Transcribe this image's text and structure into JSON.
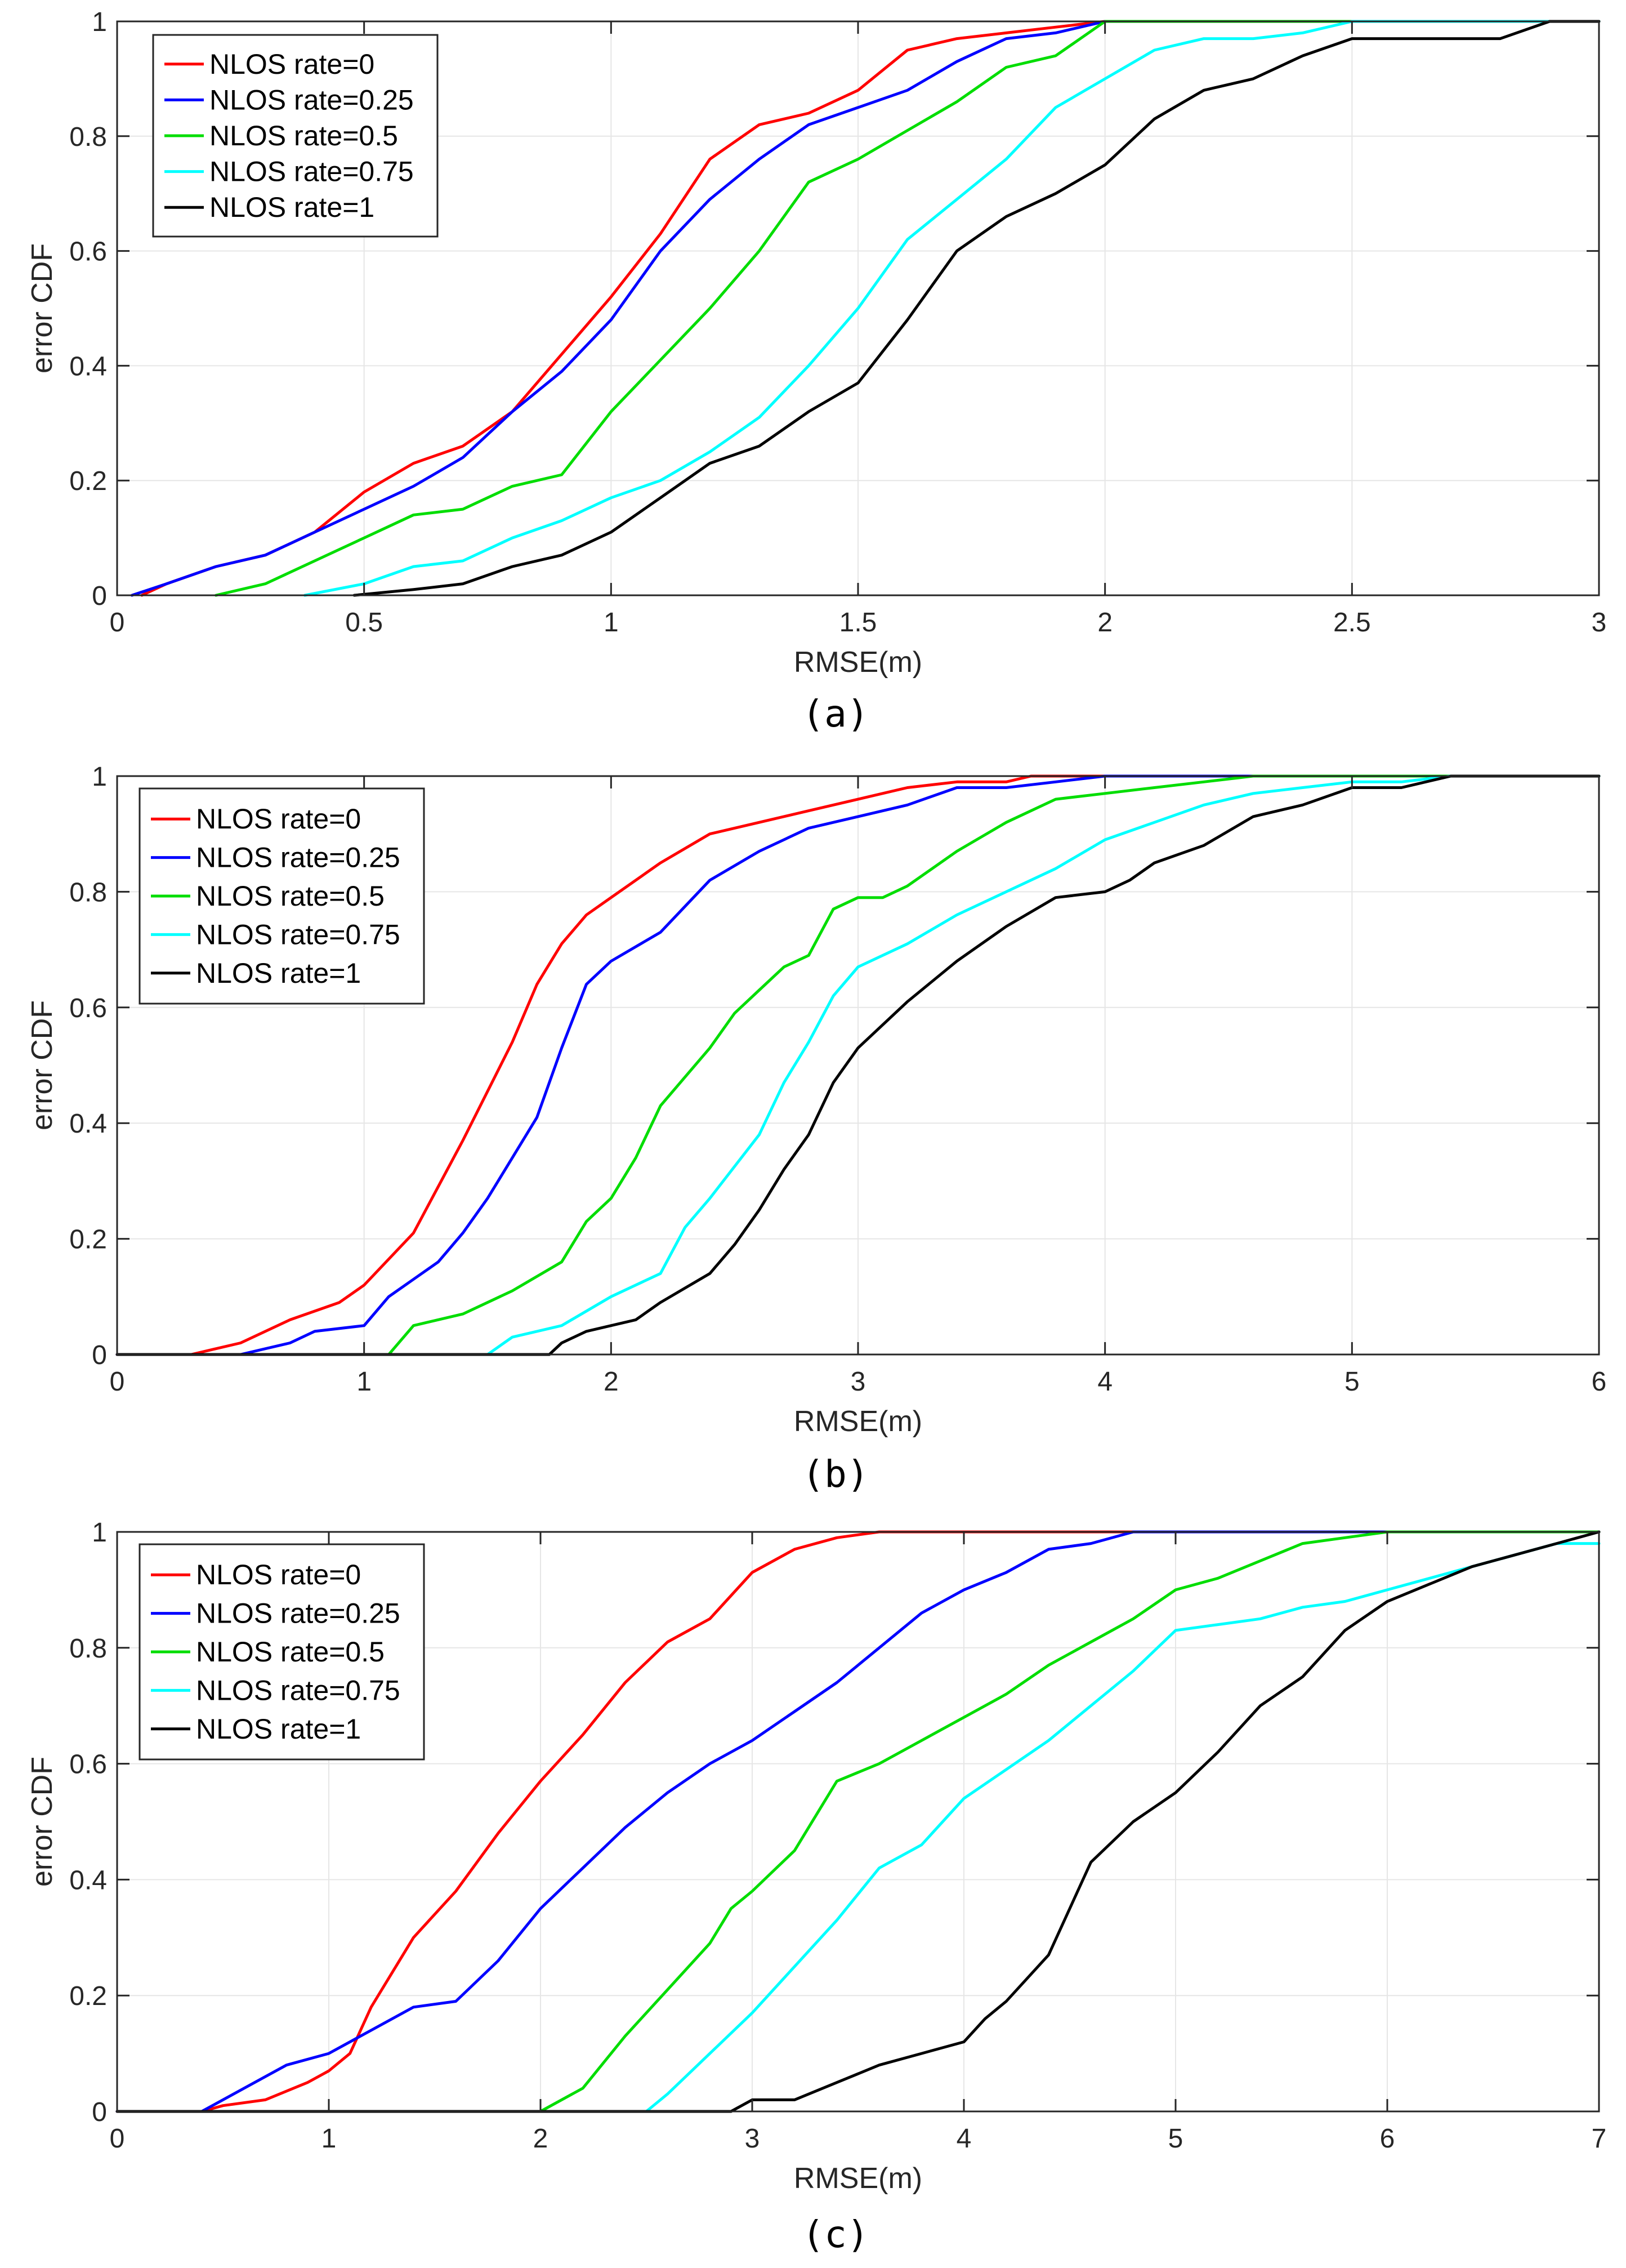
{
  "chart_data": [
    {
      "type": "line",
      "panel_label": "(a)",
      "xlabel": "RMSE(m)",
      "ylabel": "error CDF",
      "xlim": [
        0,
        3
      ],
      "ylim": [
        0,
        1
      ],
      "xticks": [
        "0",
        "0.5",
        "1",
        "1.5",
        "2",
        "2.5",
        "3"
      ],
      "yticks": [
        "0",
        "0.2",
        "0.4",
        "0.6",
        "0.8",
        "1"
      ],
      "grid": true,
      "legend": "top-left",
      "series": [
        {
          "name": "NLOS rate=0",
          "color": "#ff0000",
          "x": [
            0.05,
            0.1,
            0.2,
            0.3,
            0.4,
            0.5,
            0.6,
            0.7,
            0.8,
            0.9,
            1.0,
            1.1,
            1.2,
            1.3,
            1.4,
            1.5,
            1.6,
            1.7,
            1.8,
            1.9,
            2.0,
            3.0
          ],
          "y": [
            0.0,
            0.02,
            0.05,
            0.07,
            0.11,
            0.18,
            0.23,
            0.26,
            0.32,
            0.42,
            0.52,
            0.63,
            0.76,
            0.82,
            0.84,
            0.88,
            0.95,
            0.97,
            0.98,
            0.99,
            1.0,
            1.0
          ]
        },
        {
          "name": "NLOS rate=0.25",
          "color": "#0000ff",
          "x": [
            0.03,
            0.1,
            0.2,
            0.3,
            0.4,
            0.5,
            0.6,
            0.7,
            0.8,
            0.9,
            1.0,
            1.1,
            1.2,
            1.3,
            1.4,
            1.5,
            1.6,
            1.7,
            1.8,
            1.9,
            2.0,
            3.0
          ],
          "y": [
            0.0,
            0.02,
            0.05,
            0.07,
            0.11,
            0.15,
            0.19,
            0.24,
            0.32,
            0.39,
            0.48,
            0.6,
            0.69,
            0.76,
            0.82,
            0.85,
            0.88,
            0.93,
            0.97,
            0.98,
            1.0,
            1.0
          ]
        },
        {
          "name": "NLOS rate=0.5",
          "color": "#00dd00",
          "x": [
            0.2,
            0.3,
            0.4,
            0.5,
            0.6,
            0.7,
            0.8,
            0.9,
            1.0,
            1.1,
            1.2,
            1.3,
            1.4,
            1.5,
            1.6,
            1.7,
            1.8,
            1.9,
            2.0,
            2.1,
            3.0
          ],
          "y": [
            0.0,
            0.02,
            0.06,
            0.1,
            0.14,
            0.15,
            0.19,
            0.21,
            0.32,
            0.41,
            0.5,
            0.6,
            0.72,
            0.76,
            0.81,
            0.86,
            0.92,
            0.94,
            1.0,
            1.0,
            1.0
          ]
        },
        {
          "name": "NLOS rate=0.75",
          "color": "#00ffff",
          "x": [
            0.38,
            0.5,
            0.6,
            0.7,
            0.8,
            0.9,
            1.0,
            1.1,
            1.2,
            1.3,
            1.4,
            1.5,
            1.6,
            1.7,
            1.8,
            1.9,
            2.0,
            2.1,
            2.2,
            2.3,
            2.4,
            2.5,
            2.6,
            2.7,
            2.8,
            2.9,
            3.0
          ],
          "y": [
            0.0,
            0.02,
            0.05,
            0.06,
            0.1,
            0.13,
            0.17,
            0.2,
            0.25,
            0.31,
            0.4,
            0.5,
            0.62,
            0.69,
            0.76,
            0.85,
            0.9,
            0.95,
            0.97,
            0.97,
            0.98,
            1.0,
            1.0,
            1.0,
            1.0,
            1.0,
            1.0
          ]
        },
        {
          "name": "NLOS rate=1",
          "color": "#000000",
          "x": [
            0.48,
            0.6,
            0.7,
            0.8,
            0.9,
            1.0,
            1.1,
            1.2,
            1.3,
            1.4,
            1.5,
            1.6,
            1.7,
            1.8,
            1.9,
            2.0,
            2.1,
            2.2,
            2.3,
            2.4,
            2.5,
            2.6,
            2.7,
            2.8,
            2.9,
            3.0
          ],
          "y": [
            0.0,
            0.01,
            0.02,
            0.05,
            0.07,
            0.11,
            0.17,
            0.23,
            0.26,
            0.32,
            0.37,
            0.48,
            0.6,
            0.66,
            0.7,
            0.75,
            0.83,
            0.88,
            0.9,
            0.94,
            0.97,
            0.97,
            0.97,
            0.97,
            1.0,
            1.0
          ]
        }
      ]
    },
    {
      "type": "line",
      "panel_label": "(b)",
      "xlabel": "RMSE(m)",
      "ylabel": "error CDF",
      "xlim": [
        0,
        6
      ],
      "ylim": [
        0,
        1
      ],
      "xticks": [
        "0",
        "1",
        "2",
        "3",
        "4",
        "5",
        "6"
      ],
      "yticks": [
        "0",
        "0.2",
        "0.4",
        "0.6",
        "0.8",
        "1"
      ],
      "grid": true,
      "legend": "top-left",
      "series": [
        {
          "name": "NLOS rate=0",
          "color": "#ff0000",
          "x": [
            0.0,
            0.3,
            0.5,
            0.7,
            0.9,
            1.0,
            1.2,
            1.4,
            1.6,
            1.7,
            1.8,
            1.9,
            2.0,
            2.2,
            2.4,
            2.6,
            2.8,
            3.0,
            3.2,
            3.4,
            3.6,
            3.7,
            6.0
          ],
          "y": [
            0.0,
            0.0,
            0.02,
            0.06,
            0.09,
            0.12,
            0.21,
            0.37,
            0.54,
            0.64,
            0.71,
            0.76,
            0.79,
            0.85,
            0.9,
            0.92,
            0.94,
            0.96,
            0.98,
            0.99,
            0.99,
            1.0,
            1.0
          ]
        },
        {
          "name": "NLOS rate=0.25",
          "color": "#0000ff",
          "x": [
            0.0,
            0.5,
            0.7,
            0.8,
            1.0,
            1.1,
            1.2,
            1.3,
            1.4,
            1.5,
            1.6,
            1.7,
            1.8,
            1.9,
            2.0,
            2.2,
            2.4,
            2.6,
            2.8,
            3.0,
            3.2,
            3.4,
            3.6,
            3.8,
            4.0,
            6.0
          ],
          "y": [
            0.0,
            0.0,
            0.02,
            0.04,
            0.05,
            0.1,
            0.13,
            0.16,
            0.21,
            0.27,
            0.34,
            0.41,
            0.53,
            0.64,
            0.68,
            0.73,
            0.82,
            0.87,
            0.91,
            0.93,
            0.95,
            0.98,
            0.98,
            0.99,
            1.0,
            1.0
          ]
        },
        {
          "name": "NLOS rate=0.5",
          "color": "#00dd00",
          "x": [
            1.1,
            1.2,
            1.4,
            1.6,
            1.8,
            1.9,
            2.0,
            2.1,
            2.2,
            2.4,
            2.5,
            2.6,
            2.7,
            2.8,
            2.9,
            3.0,
            3.1,
            3.2,
            3.4,
            3.6,
            3.8,
            4.0,
            4.2,
            4.4,
            4.6,
            6.0
          ],
          "y": [
            0.0,
            0.05,
            0.07,
            0.11,
            0.16,
            0.23,
            0.27,
            0.34,
            0.43,
            0.53,
            0.59,
            0.63,
            0.67,
            0.69,
            0.77,
            0.79,
            0.79,
            0.81,
            0.87,
            0.92,
            0.96,
            0.97,
            0.98,
            0.99,
            1.0,
            1.0
          ]
        },
        {
          "name": "NLOS rate=0.75",
          "color": "#00ffff",
          "x": [
            1.5,
            1.6,
            1.8,
            2.0,
            2.2,
            2.3,
            2.4,
            2.6,
            2.7,
            2.8,
            2.9,
            3.0,
            3.2,
            3.4,
            3.6,
            3.8,
            4.0,
            4.2,
            4.4,
            4.6,
            4.8,
            5.0,
            5.2,
            5.4,
            6.0
          ],
          "y": [
            0.0,
            0.03,
            0.05,
            0.1,
            0.14,
            0.22,
            0.27,
            0.38,
            0.47,
            0.54,
            0.62,
            0.67,
            0.71,
            0.76,
            0.8,
            0.84,
            0.89,
            0.92,
            0.95,
            0.97,
            0.98,
            0.99,
            0.99,
            1.0,
            1.0
          ]
        },
        {
          "name": "NLOS rate=1",
          "color": "#000000",
          "x": [
            0.0,
            1.75,
            1.8,
            1.9,
            2.0,
            2.1,
            2.2,
            2.4,
            2.5,
            2.6,
            2.7,
            2.8,
            2.9,
            3.0,
            3.2,
            3.4,
            3.6,
            3.8,
            4.0,
            4.1,
            4.2,
            4.4,
            4.6,
            4.8,
            5.0,
            5.2,
            5.4,
            6.0
          ],
          "y": [
            0.0,
            0.0,
            0.02,
            0.04,
            0.05,
            0.06,
            0.09,
            0.14,
            0.19,
            0.25,
            0.32,
            0.38,
            0.47,
            0.53,
            0.61,
            0.68,
            0.74,
            0.79,
            0.8,
            0.82,
            0.85,
            0.88,
            0.93,
            0.95,
            0.98,
            0.98,
            1.0,
            1.0
          ]
        }
      ]
    },
    {
      "type": "line",
      "panel_label": "(c)",
      "xlabel": "RMSE(m)",
      "ylabel": "error CDF",
      "xlim": [
        0,
        7
      ],
      "ylim": [
        0,
        1
      ],
      "xticks": [
        "0",
        "1",
        "2",
        "3",
        "4",
        "5",
        "6",
        "7"
      ],
      "yticks": [
        "0",
        "0.2",
        "0.4",
        "0.6",
        "0.8",
        "1"
      ],
      "grid": true,
      "legend": "top-left",
      "series": [
        {
          "name": "NLOS rate=0",
          "color": "#ff0000",
          "x": [
            0.0,
            0.4,
            0.5,
            0.7,
            0.9,
            1.0,
            1.1,
            1.2,
            1.4,
            1.6,
            1.8,
            2.0,
            2.2,
            2.4,
            2.6,
            2.8,
            3.0,
            3.2,
            3.4,
            3.6,
            7.0
          ],
          "y": [
            0.0,
            0.0,
            0.01,
            0.02,
            0.05,
            0.07,
            0.1,
            0.18,
            0.3,
            0.38,
            0.48,
            0.57,
            0.65,
            0.74,
            0.81,
            0.85,
            0.93,
            0.97,
            0.99,
            1.0,
            1.0
          ]
        },
        {
          "name": "NLOS rate=0.25",
          "color": "#0000ff",
          "x": [
            0.0,
            0.4,
            0.6,
            0.8,
            1.0,
            1.2,
            1.4,
            1.6,
            1.8,
            2.0,
            2.2,
            2.4,
            2.6,
            2.8,
            3.0,
            3.2,
            3.4,
            3.6,
            3.8,
            4.0,
            4.2,
            4.4,
            4.6,
            4.8,
            7.0
          ],
          "y": [
            0.0,
            0.0,
            0.04,
            0.08,
            0.1,
            0.14,
            0.18,
            0.19,
            0.26,
            0.35,
            0.42,
            0.49,
            0.55,
            0.6,
            0.64,
            0.69,
            0.74,
            0.8,
            0.86,
            0.9,
            0.93,
            0.97,
            0.98,
            1.0,
            1.0
          ]
        },
        {
          "name": "NLOS rate=0.5",
          "color": "#00dd00",
          "x": [
            2.0,
            2.2,
            2.4,
            2.6,
            2.8,
            2.9,
            3.0,
            3.2,
            3.4,
            3.6,
            3.8,
            4.0,
            4.2,
            4.4,
            4.6,
            4.8,
            5.0,
            5.2,
            5.4,
            5.6,
            5.8,
            6.0,
            7.0
          ],
          "y": [
            0.0,
            0.04,
            0.13,
            0.21,
            0.29,
            0.35,
            0.38,
            0.45,
            0.57,
            0.6,
            0.64,
            0.68,
            0.72,
            0.77,
            0.81,
            0.85,
            0.9,
            0.92,
            0.95,
            0.98,
            0.99,
            1.0,
            1.0
          ]
        },
        {
          "name": "NLOS rate=0.75",
          "color": "#00ffff",
          "x": [
            2.5,
            2.6,
            2.8,
            3.0,
            3.2,
            3.4,
            3.6,
            3.8,
            4.0,
            4.2,
            4.4,
            4.6,
            4.8,
            5.0,
            5.2,
            5.4,
            5.6,
            5.8,
            6.0,
            6.2,
            6.4,
            6.6,
            6.8,
            7.0
          ],
          "y": [
            0.0,
            0.03,
            0.1,
            0.17,
            0.25,
            0.33,
            0.42,
            0.46,
            0.54,
            0.59,
            0.64,
            0.7,
            0.76,
            0.83,
            0.84,
            0.85,
            0.87,
            0.88,
            0.9,
            0.92,
            0.94,
            0.96,
            0.98,
            0.98
          ]
        },
        {
          "name": "NLOS rate=1",
          "color": "#000000",
          "x": [
            0.0,
            2.9,
            3.0,
            3.2,
            3.4,
            3.6,
            3.8,
            4.0,
            4.1,
            4.2,
            4.4,
            4.6,
            4.8,
            5.0,
            5.2,
            5.4,
            5.6,
            5.8,
            6.0,
            6.2,
            6.4,
            6.6,
            6.8,
            7.0
          ],
          "y": [
            0.0,
            0.0,
            0.02,
            0.02,
            0.05,
            0.08,
            0.1,
            0.12,
            0.16,
            0.19,
            0.27,
            0.43,
            0.5,
            0.55,
            0.62,
            0.7,
            0.75,
            0.83,
            0.88,
            0.91,
            0.94,
            0.96,
            0.98,
            1.0
          ]
        }
      ]
    }
  ]
}
